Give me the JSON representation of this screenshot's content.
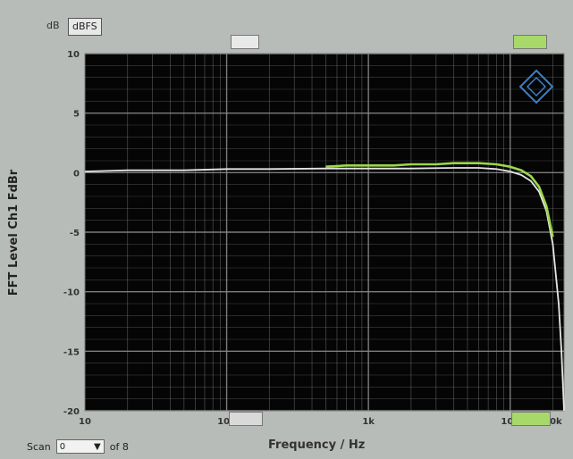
{
  "unit": {
    "prefix": "dB",
    "value": "dBFS"
  },
  "markers": {
    "top_left": "",
    "top_right": "",
    "bottom_left": "",
    "bottom_right": ""
  },
  "scan": {
    "label": "Scan",
    "value": "0",
    "of_text": "of 8"
  },
  "chart_data": {
    "type": "line",
    "ylabel": "FFT Level Ch1 FdBr",
    "xlabel": "Frequency / Hz",
    "xscale": "log",
    "xlim": [
      10,
      24000
    ],
    "ylim": [
      -20,
      10
    ],
    "yticks": [
      10,
      5,
      0,
      -5,
      -10,
      -15,
      -20
    ],
    "ytick_labels": [
      "10",
      "5",
      "0",
      "-5",
      "-10",
      "-15",
      "-20"
    ],
    "xticks": [
      10,
      100,
      1000,
      10000,
      20000
    ],
    "xtick_labels": [
      "10",
      "100",
      "1k",
      "10k",
      "20k"
    ],
    "grid": true,
    "colors": {
      "background": "#050505",
      "grid": "#8a8a8a",
      "trace_main": "#e6e6e6",
      "trace_green": "#9bd84a"
    },
    "series": [
      {
        "x": [
          10,
          20,
          50,
          100,
          200,
          500,
          1000,
          2000,
          4000,
          6000,
          8000,
          10000,
          12000,
          14000,
          16000,
          18000,
          20000,
          22000,
          23000,
          24000
        ],
        "values": [
          0.1,
          0.2,
          0.2,
          0.3,
          0.3,
          0.35,
          0.35,
          0.35,
          0.4,
          0.4,
          0.3,
          0.1,
          -0.2,
          -0.7,
          -1.6,
          -3.2,
          -6.0,
          -11.0,
          -15.0,
          -20.0
        ]
      },
      {
        "x": [
          500,
          700,
          1000,
          1500,
          2000,
          3000,
          4000,
          6000,
          8000,
          10000,
          12000,
          14000,
          16000,
          18000,
          20000
        ],
        "values": [
          0.5,
          0.6,
          0.6,
          0.6,
          0.7,
          0.7,
          0.8,
          0.8,
          0.7,
          0.5,
          0.2,
          -0.3,
          -1.2,
          -2.8,
          -5.4
        ]
      }
    ]
  }
}
